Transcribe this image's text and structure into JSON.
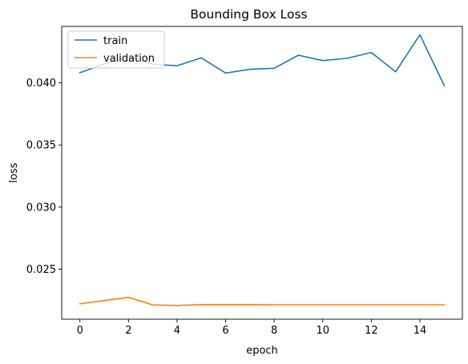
{
  "chart_data": {
    "type": "line",
    "title": "Bounding Box Loss",
    "xlabel": "epoch",
    "ylabel": "loss",
    "xlim": [
      -0.75,
      15.75
    ],
    "ylim": [
      0.02097,
      0.04455
    ],
    "xticks": [
      0,
      2,
      4,
      6,
      8,
      10,
      12,
      14
    ],
    "xtick_labels": [
      "0",
      "2",
      "4",
      "6",
      "8",
      "10",
      "12",
      "14"
    ],
    "yticks": [
      0.025,
      0.03,
      0.035,
      0.04
    ],
    "ytick_labels": [
      "0.025",
      "0.030",
      "0.035",
      "0.040"
    ],
    "grid": false,
    "legend_position": "upper-left",
    "x": [
      0,
      1,
      2,
      3,
      4,
      5,
      6,
      7,
      8,
      9,
      10,
      11,
      12,
      13,
      14,
      15
    ],
    "series": [
      {
        "name": "train",
        "color": "#1f77b4",
        "values": [
          0.04082,
          0.04152,
          0.04205,
          0.0415,
          0.04138,
          0.04202,
          0.04079,
          0.0411,
          0.04118,
          0.04223,
          0.0418,
          0.04198,
          0.04245,
          0.04089,
          0.04388,
          0.03978
        ]
      },
      {
        "name": "validation",
        "color": "#ff7f0e",
        "values": [
          0.02221,
          0.02247,
          0.02273,
          0.02212,
          0.02208,
          0.02214,
          0.02214,
          0.02214,
          0.02213,
          0.02213,
          0.02213,
          0.02213,
          0.02213,
          0.02213,
          0.02213,
          0.02213
        ]
      }
    ]
  }
}
